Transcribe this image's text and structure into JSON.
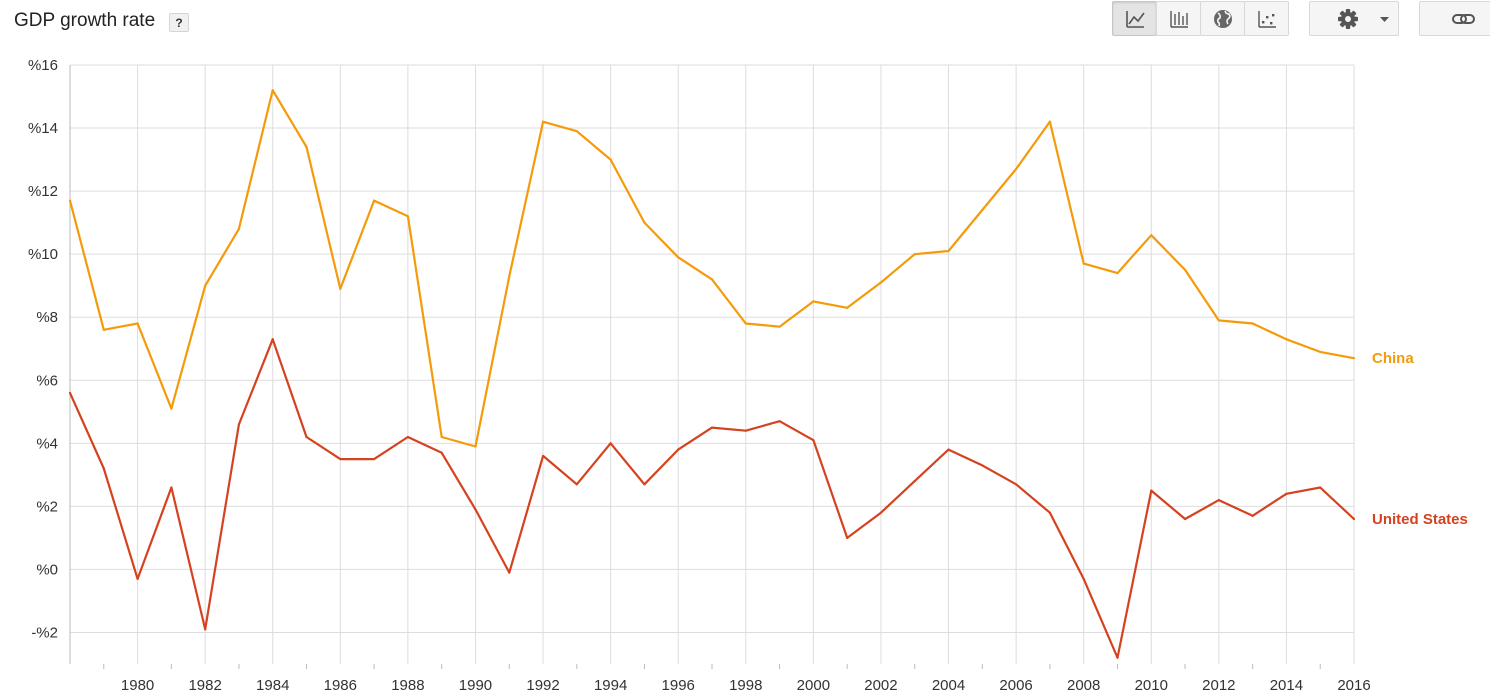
{
  "header": {
    "title": "GDP growth rate",
    "help_label": "?"
  },
  "toolbar": {
    "buttons": [
      {
        "icon": "line-chart-icon",
        "selected": true
      },
      {
        "icon": "bar-chart-icon",
        "selected": false
      },
      {
        "icon": "globe-icon",
        "selected": false
      },
      {
        "icon": "scatter-chart-icon",
        "selected": false
      },
      {
        "icon": "gear-icon",
        "selected": false
      },
      {
        "icon": "link-icon",
        "selected": false
      }
    ]
  },
  "colors": {
    "china": "#f59a0b",
    "united_states": "#d5421f",
    "grid": "#dddddd",
    "axis": "#bbbbbb"
  },
  "chart_data": {
    "type": "line",
    "title": "GDP growth rate",
    "xlabel": "",
    "ylabel": "",
    "xlim": [
      1978,
      2016
    ],
    "ylim": [
      -3,
      16
    ],
    "y_ticks": [
      -2,
      0,
      2,
      4,
      6,
      8,
      10,
      12,
      14,
      16
    ],
    "y_tick_labels": [
      "-%2",
      "%0",
      "%2",
      "%4",
      "%6",
      "%8",
      "%10",
      "%12",
      "%14",
      "%16"
    ],
    "x_ticks": [
      1980,
      1982,
      1984,
      1986,
      1988,
      1990,
      1992,
      1994,
      1996,
      1998,
      2000,
      2002,
      2004,
      2006,
      2008,
      2010,
      2012,
      2014,
      2016
    ],
    "x_tick_labels": [
      "1980",
      "1982",
      "1984",
      "1986",
      "1988",
      "1990",
      "1992",
      "1994",
      "1996",
      "1998",
      "2000",
      "2002",
      "2004",
      "2006",
      "2008",
      "2010",
      "2012",
      "2014",
      "2016"
    ],
    "grid": true,
    "legend": "end-of-line labels",
    "x": [
      1978,
      1979,
      1980,
      1981,
      1982,
      1983,
      1984,
      1985,
      1986,
      1987,
      1988,
      1989,
      1990,
      1991,
      1992,
      1993,
      1994,
      1995,
      1996,
      1997,
      1998,
      1999,
      2000,
      2001,
      2002,
      2003,
      2004,
      2005,
      2006,
      2007,
      2008,
      2009,
      2010,
      2011,
      2012,
      2013,
      2014,
      2015,
      2016
    ],
    "series": [
      {
        "name": "China",
        "color": "#f59a0b",
        "values": [
          11.7,
          7.6,
          7.8,
          5.1,
          9.0,
          10.8,
          15.2,
          13.4,
          8.9,
          11.7,
          11.2,
          4.2,
          3.9,
          9.3,
          14.2,
          13.9,
          13.0,
          11.0,
          9.9,
          9.2,
          7.8,
          7.7,
          8.5,
          8.3,
          9.1,
          10.0,
          10.1,
          11.4,
          12.7,
          14.2,
          9.7,
          9.4,
          10.6,
          9.5,
          7.9,
          7.8,
          7.3,
          6.9,
          6.7
        ]
      },
      {
        "name": "United States",
        "color": "#d5421f",
        "values": [
          5.6,
          3.2,
          -0.3,
          2.6,
          -1.9,
          4.6,
          7.3,
          4.2,
          3.5,
          3.5,
          4.2,
          3.7,
          1.9,
          -0.1,
          3.6,
          2.7,
          4.0,
          2.7,
          3.8,
          4.5,
          4.4,
          4.7,
          4.1,
          1.0,
          1.8,
          2.8,
          3.8,
          3.3,
          2.7,
          1.8,
          -0.3,
          -2.8,
          2.5,
          1.6,
          2.2,
          1.7,
          2.4,
          2.6,
          1.6
        ]
      }
    ]
  }
}
